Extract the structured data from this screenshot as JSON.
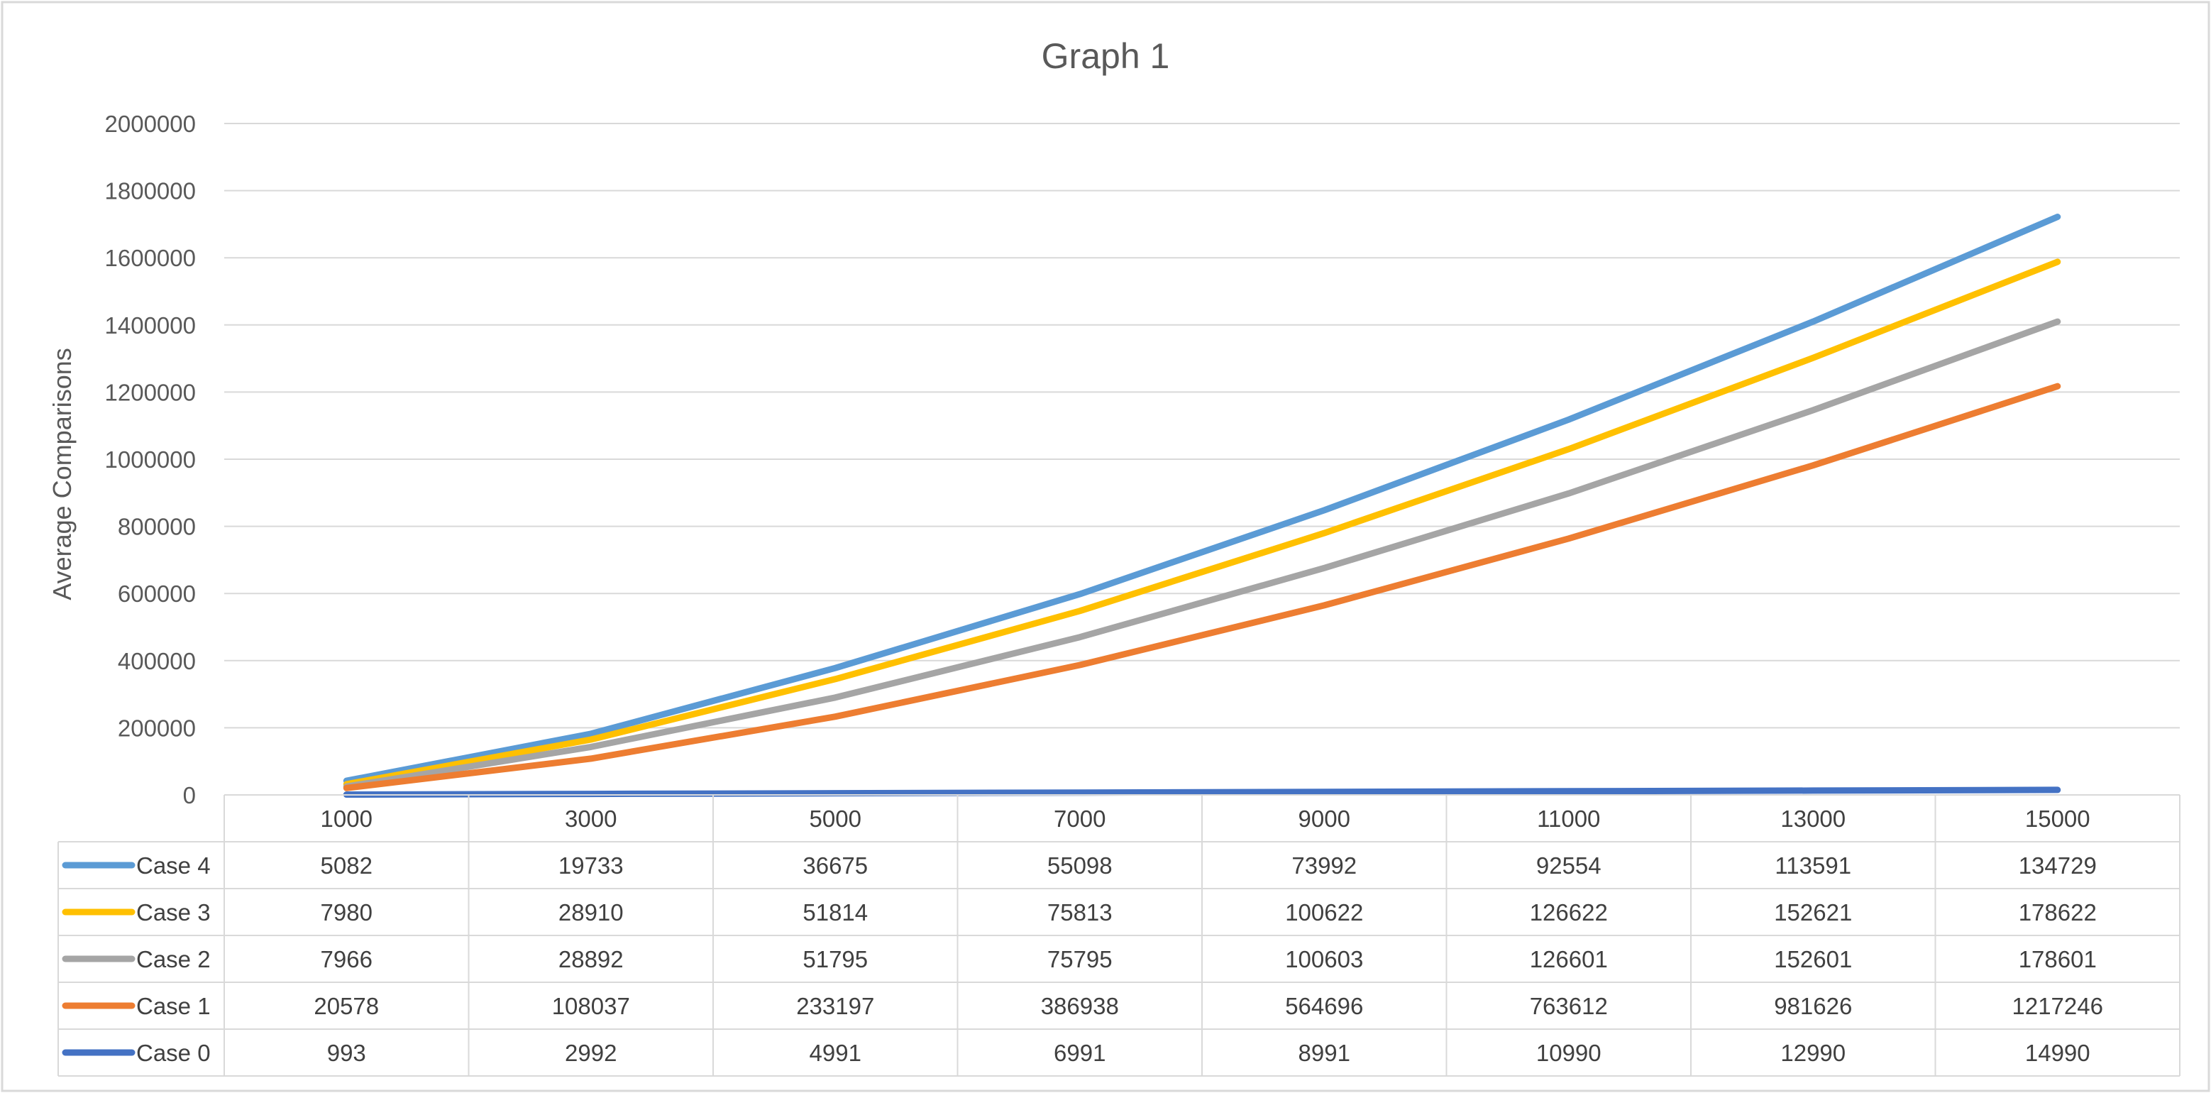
{
  "chart_data": {
    "type": "line",
    "title": "Graph 1",
    "xlabel": "",
    "ylabel": "Average Comparisons",
    "ylim": [
      0,
      2000000
    ],
    "yticks": [
      "0",
      "200000",
      "400000",
      "600000",
      "800000",
      "1000000",
      "1200000",
      "1400000",
      "1600000",
      "1800000",
      "2000000"
    ],
    "grid": true,
    "legend": "data-table",
    "categories": [
      "1000",
      "3000",
      "5000",
      "7000",
      "9000",
      "11000",
      "13000",
      "15000"
    ],
    "series": [
      {
        "name": "Case 4",
        "color": "#5b9bd5",
        "values": [
          5082,
          19733,
          36675,
          55098,
          73992,
          92554,
          113591,
          134729
        ],
        "plotted": [
          42000,
          182000,
          378000,
          598000,
          848000,
          1118000,
          1410000,
          1722000
        ]
      },
      {
        "name": "Case 3",
        "color": "#ffc000",
        "values": [
          7980,
          28910,
          51814,
          75813,
          100622,
          126622,
          152621,
          178622
        ],
        "plotted": [
          32000,
          165000,
          345000,
          548000,
          780000,
          1030000,
          1302000,
          1588000
        ]
      },
      {
        "name": "Case 2",
        "color": "#a5a5a5",
        "values": [
          7966,
          28892,
          51795,
          75795,
          100603,
          126601,
          152601,
          178601
        ],
        "plotted": [
          25000,
          143000,
          290000,
          470000,
          676000,
          898000,
          1146000,
          1410000
        ]
      },
      {
        "name": "Case 1",
        "color": "#ed7d31",
        "values": [
          20578,
          108037,
          233197,
          386938,
          564696,
          763612,
          981626,
          1217246
        ],
        "plotted": [
          20578,
          108037,
          233197,
          386938,
          564696,
          763612,
          981626,
          1217246
        ]
      },
      {
        "name": "Case 0",
        "color": "#4472c4",
        "values": [
          993,
          2992,
          4991,
          6991,
          8991,
          10990,
          12990,
          14990
        ],
        "plotted": [
          993,
          2992,
          4991,
          6991,
          8991,
          10990,
          12990,
          14990
        ]
      }
    ]
  }
}
